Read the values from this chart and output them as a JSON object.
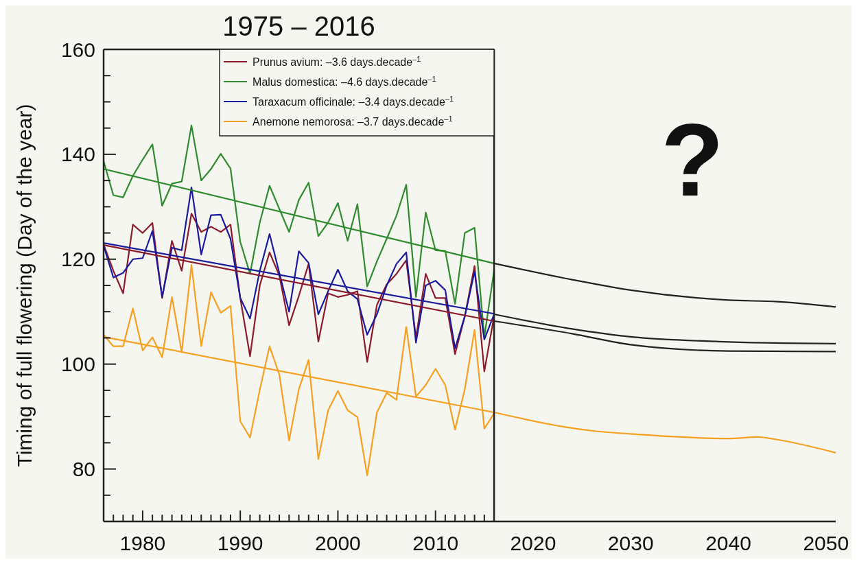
{
  "chart_data": {
    "type": "line",
    "title": "1975 – 2016",
    "ylabel": "Timing of full flowering (Day of the year)",
    "annotations": [
      "?"
    ],
    "x": [
      1976,
      1977,
      1978,
      1979,
      1980,
      1981,
      1982,
      1983,
      1984,
      1985,
      1986,
      1987,
      1988,
      1989,
      1990,
      1991,
      1992,
      1993,
      1994,
      1995,
      1996,
      1997,
      1998,
      1999,
      2000,
      2001,
      2002,
      2003,
      2004,
      2005,
      2006,
      2007,
      2008,
      2009,
      2010,
      2011,
      2012,
      2013,
      2014,
      2015,
      2016
    ],
    "series": [
      {
        "name": "Prunus avium: –3.6 days.decade$^{–1}$",
        "color": "#8b1a2b",
        "values": [
          122.8,
          117.8,
          113.5,
          126.6,
          125,
          126.9,
          112.6,
          123.5,
          117.8,
          128.7,
          125.2,
          126.2,
          125.2,
          126.6,
          112.6,
          101.5,
          115,
          121.3,
          116.9,
          107.4,
          113,
          119.1,
          104.3,
          113.5,
          112.8,
          113.2,
          113.9,
          100.4,
          111.3,
          115.2,
          117.2,
          119.8,
          105,
          117.2,
          112.6,
          112.6,
          101.9,
          109.1,
          118.7,
          98.6,
          109.1
        ]
      },
      {
        "name": "Malus domestica: –4.6 days.decade$^{–1}$",
        "color": "#2e8b2e",
        "values": [
          138.7,
          132.2,
          131.8,
          135.9,
          139,
          141.9,
          130.2,
          134.4,
          134.8,
          145.5,
          135,
          137.2,
          140.1,
          137.3,
          123.3,
          117.2,
          127,
          134,
          129.6,
          125.2,
          131.3,
          134.6,
          124.4,
          127,
          130.7,
          123.5,
          130.5,
          114.8,
          119.6,
          123.9,
          128.3,
          134.2,
          112.8,
          128.9,
          121.7,
          121.6,
          111.5,
          125,
          126,
          105.2,
          117.8
        ]
      },
      {
        "name": "Taraxacum officinale: –3.4 days.decade$^{–1}$",
        "color": "#1a1a9c",
        "values": [
          122.6,
          116.5,
          117.4,
          120,
          120.2,
          125.4,
          112.8,
          122.2,
          121.7,
          133.7,
          120.9,
          128.4,
          128.5,
          123.9,
          112.6,
          108.7,
          117.8,
          124.8,
          117.4,
          110,
          121.5,
          119.3,
          109.5,
          113.9,
          118,
          113.9,
          112.4,
          105.6,
          109.5,
          115,
          119.1,
          121.3,
          104.1,
          115,
          115.9,
          114.1,
          103,
          109.1,
          117.6,
          104.7,
          109.5
        ]
      },
      {
        "name": "Anemone nemorosa: –3.7 days.decade$^{–1}$",
        "color": "#f5a020",
        "values": [
          105.6,
          103.4,
          103.4,
          110.6,
          102.6,
          105.1,
          101.3,
          112.8,
          102.3,
          118.9,
          103.4,
          113.7,
          109.8,
          111.1,
          89.1,
          86,
          95.1,
          103.4,
          98,
          85.4,
          95.2,
          100.8,
          81.9,
          91.2,
          94.9,
          91.2,
          89.9,
          78.8,
          90.8,
          94.5,
          93.2,
          107.1,
          93.8,
          96,
          99.1,
          96,
          87.5,
          95.2,
          106.5,
          87.7,
          90.6
        ]
      },
      {
        "color": "#8b1a2b",
        "x": [
          1976,
          2016
        ],
        "values": [
          122.7,
          108.2
        ]
      },
      {
        "color": "#2e8b2e",
        "x": [
          1976,
          2016
        ],
        "values": [
          137.2,
          119.2
        ]
      },
      {
        "color": "#1a1a9c",
        "x": [
          1976,
          2016
        ],
        "values": [
          123.1,
          109.6
        ]
      },
      {
        "color": "#f5a020",
        "x": [
          1976,
          2016
        ],
        "values": [
          105.2,
          90.8
        ]
      },
      {
        "color": "#222222",
        "x": [
          2016,
          2024,
          2030,
          2040,
          2045,
          2051
        ],
        "values": [
          119.2,
          116.1,
          114.1,
          112.2,
          111.9,
          110.9
        ]
      },
      {
        "color": "#222222",
        "x": [
          2016,
          2024,
          2030,
          2039,
          2051
        ],
        "values": [
          109.5,
          106.7,
          105.2,
          104.3,
          103.9
        ]
      },
      {
        "color": "#222222",
        "x": [
          2016,
          2024,
          2030,
          2040,
          2051
        ],
        "values": [
          108.2,
          105.8,
          103.7,
          102.5,
          102.4
        ]
      },
      {
        "color": "#f5a020",
        "x": [
          2016,
          2024,
          2026,
          2030,
          2040,
          2043,
          2045,
          2051
        ],
        "values": [
          90.8,
          87.8,
          87.3,
          86.7,
          85.8,
          86.1,
          85.6,
          83.1
        ]
      }
    ],
    "xlim": [
      1976,
      2051
    ],
    "xticks": [
      {
        "value": 1977,
        "label": null
      },
      {
        "value": 1978,
        "label": null
      },
      {
        "value": 1979,
        "label": null
      },
      1980,
      {
        "value": 1981,
        "label": null
      },
      {
        "value": 1982,
        "label": null
      },
      {
        "value": 1983,
        "label": null
      },
      {
        "value": 1984,
        "label": null
      },
      {
        "value": 1985,
        "label": null
      },
      {
        "value": 1986,
        "label": null
      },
      {
        "value": 1987,
        "label": null
      },
      {
        "value": 1988,
        "label": null
      },
      {
        "value": 1989,
        "label": null
      },
      1990,
      {
        "value": 1991,
        "label": null
      },
      {
        "value": 1992,
        "label": null
      },
      {
        "value": 1993,
        "label": null
      },
      {
        "value": 1994,
        "label": null
      },
      {
        "value": 1995,
        "label": null
      },
      {
        "value": 1996,
        "label": null
      },
      {
        "value": 1997,
        "label": null
      },
      {
        "value": 1998,
        "label": null
      },
      {
        "value": 1999,
        "label": null
      },
      2000,
      {
        "value": 2001,
        "label": null
      },
      {
        "value": 2002,
        "label": null
      },
      {
        "value": 2003,
        "label": null
      },
      {
        "value": 2004,
        "label": null
      },
      {
        "value": 2005,
        "label": null
      },
      {
        "value": 2006,
        "label": null
      },
      {
        "value": 2007,
        "label": null
      },
      {
        "value": 2008,
        "label": null
      },
      {
        "value": 2009,
        "label": null
      },
      2010,
      {
        "value": 2011,
        "label": null
      },
      {
        "value": 2012,
        "label": null
      },
      {
        "value": 2013,
        "label": null
      },
      {
        "value": 2014,
        "label": null
      },
      {
        "value": 2015,
        "label": null
      },
      2020,
      2030,
      2040,
      2050
    ],
    "ylim": [
      70,
      160
    ],
    "yticks": [
      {
        "value": 75,
        "label": null
      },
      80,
      {
        "value": 85,
        "label": null
      },
      {
        "value": 90,
        "label": null
      },
      {
        "value": 95,
        "label": null
      },
      100,
      {
        "value": 105,
        "label": null
      },
      {
        "value": 110,
        "label": null
      },
      {
        "value": 115,
        "label": null
      },
      120,
      {
        "value": 125,
        "label": null
      },
      {
        "value": 130,
        "label": null
      },
      {
        "value": 135,
        "label": null
      },
      140,
      {
        "value": 145,
        "label": null
      },
      {
        "value": 150,
        "label": null
      },
      {
        "value": 155,
        "label": null
      },
      160
    ],
    "ref_lines": [
      {
        "axis": "x",
        "value": 2016,
        "color": "#222222"
      }
    ],
    "legend": "top",
    "grid": false,
    "line_style": "solid",
    "marker": "none"
  }
}
